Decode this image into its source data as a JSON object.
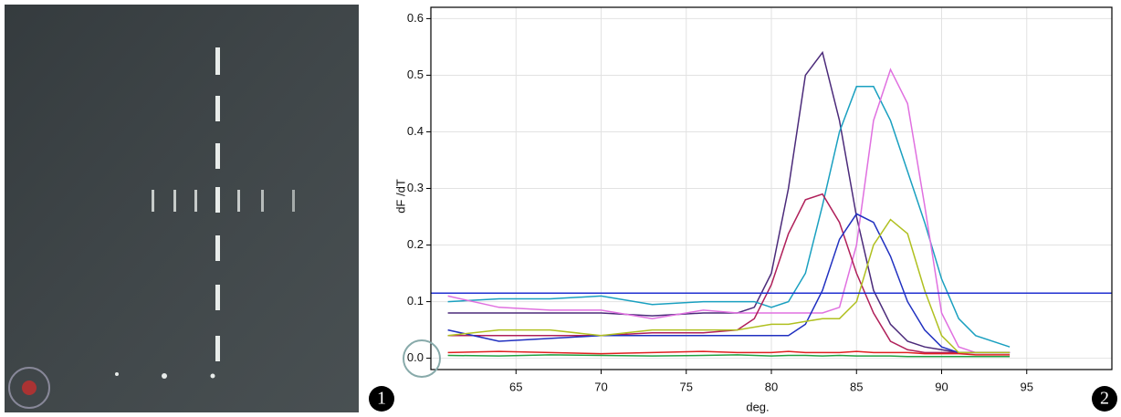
{
  "chart_data": {
    "type": "line",
    "x_label": "deg.",
    "y_label": "dF /dT",
    "x": [
      61,
      64,
      67,
      70,
      73,
      76,
      78,
      79,
      80,
      81,
      82,
      83,
      84,
      85,
      86,
      87,
      88,
      89,
      90,
      91,
      92,
      94
    ],
    "series": [
      {
        "color": "#4b2a7a",
        "values": [
          0.08,
          0.08,
          0.08,
          0.08,
          0.075,
          0.08,
          0.08,
          0.09,
          0.15,
          0.3,
          0.5,
          0.54,
          0.42,
          0.25,
          0.12,
          0.06,
          0.03,
          0.02,
          0.015,
          0.01,
          0.01,
          0.01
        ]
      },
      {
        "color": "#1aa0c0",
        "values": [
          0.1,
          0.105,
          0.105,
          0.11,
          0.095,
          0.1,
          0.1,
          0.1,
          0.09,
          0.1,
          0.15,
          0.27,
          0.4,
          0.48,
          0.48,
          0.42,
          0.33,
          0.24,
          0.14,
          0.07,
          0.04,
          0.02
        ]
      },
      {
        "color": "#e070e0",
        "values": [
          0.11,
          0.09,
          0.085,
          0.085,
          0.07,
          0.085,
          0.08,
          0.08,
          0.08,
          0.08,
          0.08,
          0.08,
          0.09,
          0.2,
          0.42,
          0.51,
          0.45,
          0.27,
          0.08,
          0.02,
          0.01,
          0.01
        ]
      },
      {
        "color": "#b0205a",
        "values": [
          0.04,
          0.04,
          0.04,
          0.04,
          0.045,
          0.045,
          0.05,
          0.07,
          0.13,
          0.22,
          0.28,
          0.29,
          0.24,
          0.15,
          0.08,
          0.03,
          0.015,
          0.01,
          0.01,
          0.01,
          0.01,
          0.01
        ]
      },
      {
        "color": "#2030c0",
        "values": [
          0.05,
          0.03,
          0.035,
          0.04,
          0.04,
          0.04,
          0.04,
          0.04,
          0.04,
          0.04,
          0.06,
          0.12,
          0.21,
          0.255,
          0.24,
          0.18,
          0.1,
          0.05,
          0.02,
          0.01,
          0.01,
          0.01
        ]
      },
      {
        "color": "#b0c020",
        "values": [
          0.04,
          0.05,
          0.05,
          0.04,
          0.05,
          0.05,
          0.05,
          0.055,
          0.06,
          0.06,
          0.065,
          0.07,
          0.07,
          0.1,
          0.2,
          0.245,
          0.22,
          0.12,
          0.04,
          0.01,
          0.01,
          0.01
        ]
      },
      {
        "color": "#e02020",
        "values": [
          0.01,
          0.012,
          0.01,
          0.008,
          0.01,
          0.012,
          0.01,
          0.01,
          0.01,
          0.012,
          0.01,
          0.01,
          0.01,
          0.012,
          0.01,
          0.01,
          0.01,
          0.008,
          0.008,
          0.008,
          0.006,
          0.006
        ]
      },
      {
        "color": "#20a040",
        "values": [
          0.005,
          0.004,
          0.006,
          0.005,
          0.004,
          0.005,
          0.006,
          0.005,
          0.004,
          0.005,
          0.005,
          0.004,
          0.005,
          0.004,
          0.004,
          0.004,
          0.003,
          0.003,
          0.003,
          0.003,
          0.003,
          0.003
        ]
      }
    ],
    "threshold": 0.115,
    "threshold_color": "#2030d0",
    "xlim": [
      60,
      100
    ],
    "ylim": [
      -0.02,
      0.62
    ],
    "xticks": [
      65,
      70,
      75,
      80,
      85,
      90,
      95
    ],
    "yticks": [
      {
        "value": 0,
        "label": "0.0"
      },
      0.1,
      0.2,
      0.3,
      0.4,
      0.5,
      0.6
    ],
    "grid": true
  },
  "panel_labels": [
    "1",
    "2"
  ]
}
